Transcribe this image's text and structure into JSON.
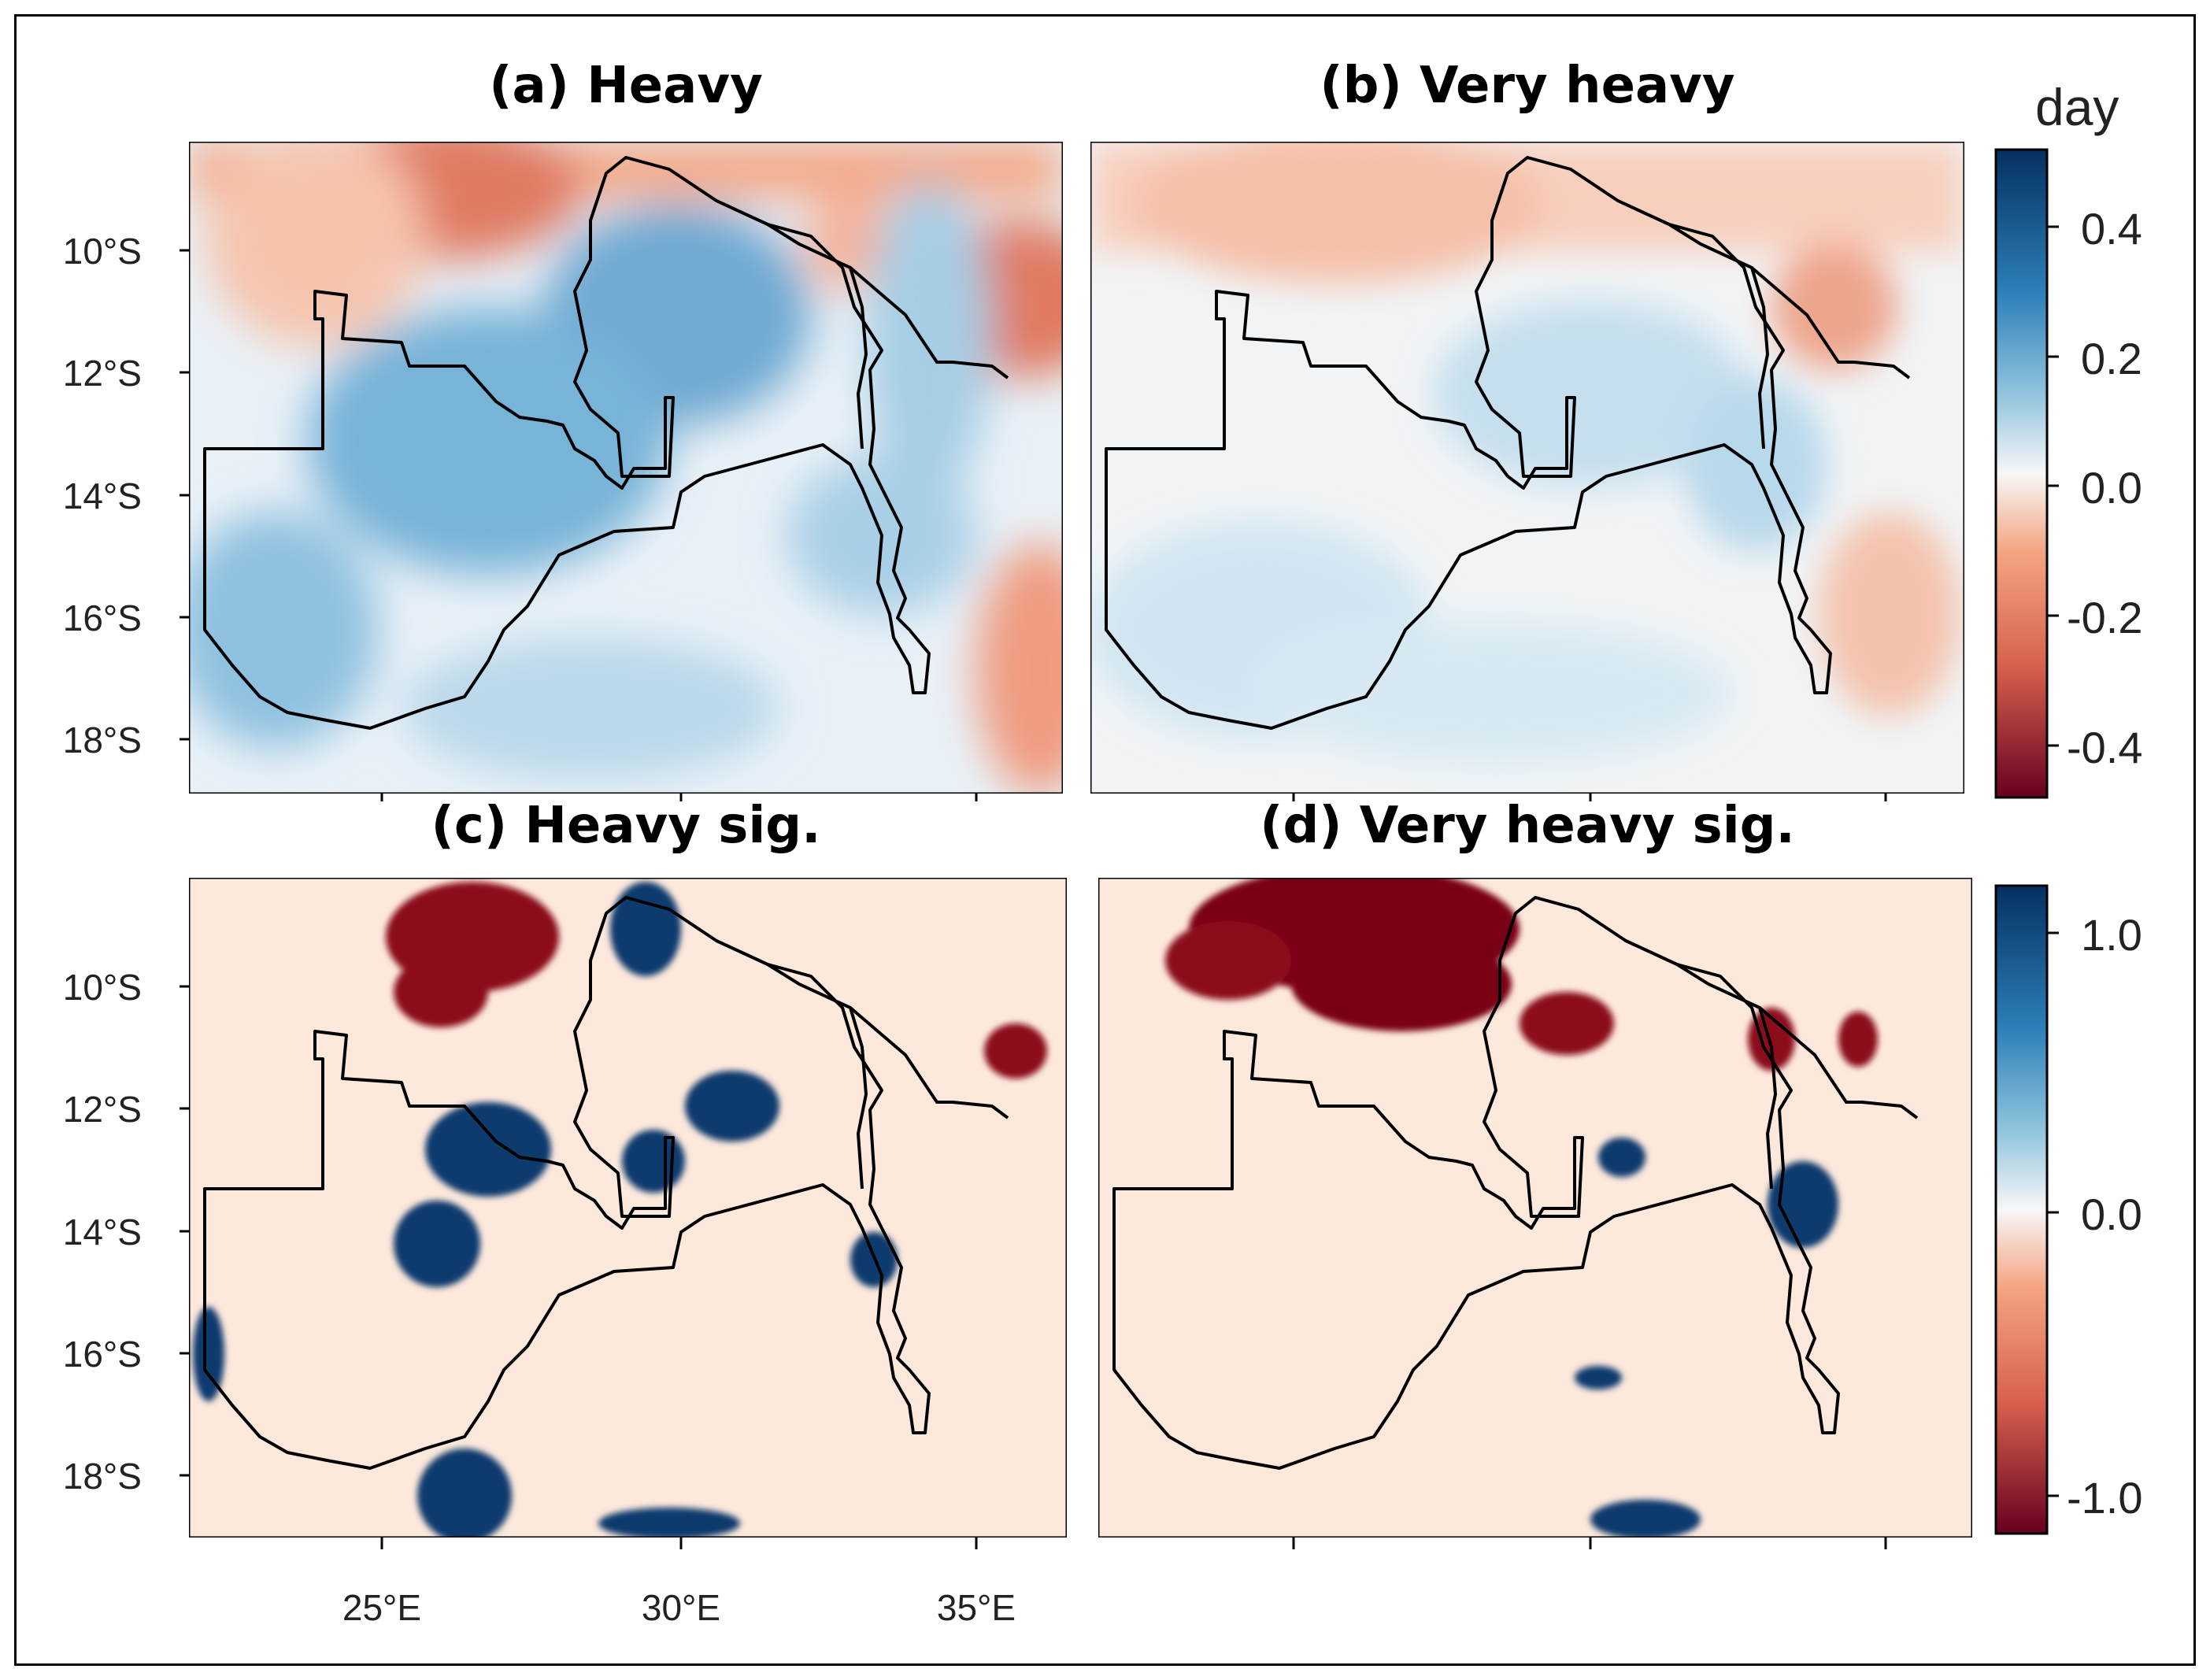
{
  "panels": {
    "a": {
      "title": "(a) Heavy"
    },
    "b": {
      "title": "(b) Very heavy"
    },
    "c": {
      "title": "(c) Heavy sig."
    },
    "d": {
      "title": "(d) Very heavy sig."
    }
  },
  "latitude_labels": [
    "10°S",
    "12°S",
    "14°S",
    "16°S",
    "18°S"
  ],
  "longitude_labels": [
    "25°E",
    "30°E",
    "35°E"
  ],
  "colorbar_top": {
    "unit": "day",
    "ticks": [
      "0.4",
      "0.2",
      "0.0",
      "-0.2",
      "-0.4"
    ]
  },
  "colorbar_bottom": {
    "ticks": [
      "1.0",
      "0.0",
      "-1.0"
    ]
  },
  "colors": {
    "dark_red": "#67001f",
    "red": "#d6604d",
    "light_red": "#fddbc7",
    "white": "#f7f7f7",
    "light_blue": "#d1e5f0",
    "blue": "#4393c3",
    "dark_blue": "#053061",
    "sig_bg": "#fde8dc"
  }
}
